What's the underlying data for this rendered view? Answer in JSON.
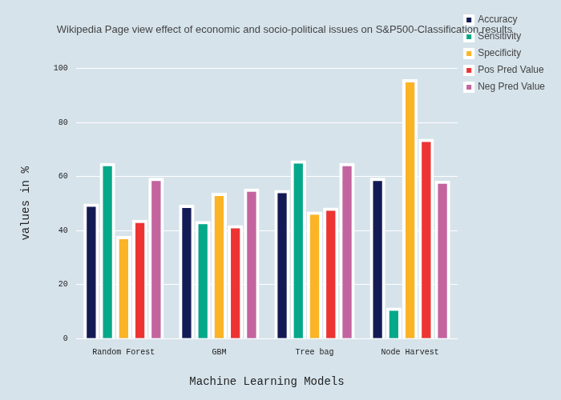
{
  "chart_data": {
    "type": "bar",
    "title": "Wikipedia Page view effect of economic and socio-political issues on S&P500-Classification results",
    "x_label": "Machine Learning Models",
    "y_label": "values in %",
    "categories": [
      "Random Forest",
      "GBM",
      "Tree bag",
      "Node Harvest"
    ],
    "series": [
      {
        "name": "Accuracy",
        "color": "#141b54",
        "values": [
          50,
          49.5,
          55,
          59.5
        ]
      },
      {
        "name": "Sensitivity",
        "color": "#06a88a",
        "values": [
          65,
          43.5,
          66,
          11.5
        ]
      },
      {
        "name": "Specificity",
        "color": "#fbb425",
        "values": [
          38,
          54,
          47,
          96
        ]
      },
      {
        "name": "Pos Pred Value",
        "color": "#ee3333",
        "values": [
          44,
          42,
          48.5,
          74
        ]
      },
      {
        "name": "Neg Pred Value",
        "color": "#c4649f",
        "values": [
          59.5,
          55.5,
          65,
          58.5
        ]
      }
    ],
    "ylim": [
      0,
      100
    ],
    "yticks": [
      0,
      20,
      40,
      60,
      80,
      100
    ],
    "grid": true,
    "legend": "right"
  }
}
